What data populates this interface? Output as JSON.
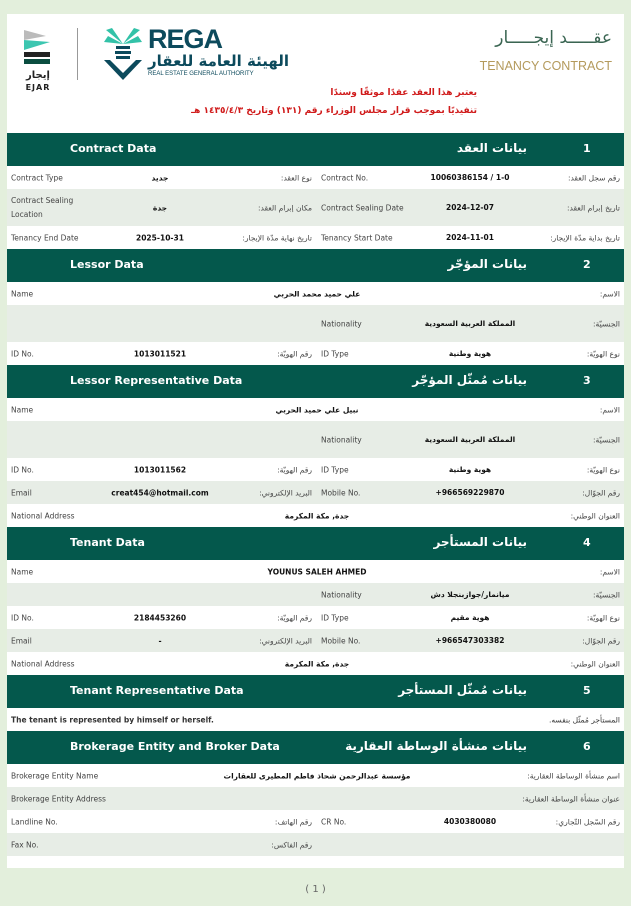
{
  "header": {
    "ejar_logo_ar": "إيجار",
    "ejar_logo_en": "EJAR",
    "rega_logo_en": "REGA",
    "rega_logo_ar": "الهيئة العامة للعقار",
    "rega_logo_sub": "REAL ESTATE GENERAL AUTHORITY",
    "title_ar": "عقـــــد إيجـــــار",
    "title_en": "TENANCY CONTRACT",
    "note_line1": "يعتبر هذا العقد عقدًا موثقًا وسندًا",
    "note_line2": "تنفيذيًا بموجب قرار مجلس الوزراء رقم (١٣١) وتاريخ ١٤٣٥/٤/٣ هـ",
    "note_color": "#d01a1a"
  },
  "colors": {
    "header_bar": "#04584c",
    "row_alt": "#e7ede6",
    "background": "#e3efdc"
  },
  "sections": [
    {
      "num": "1",
      "title_en": "Contract Data",
      "title_ar": "بيانات العقد",
      "rows": [
        {
          "en1": "Contract Type",
          "v1": "جديد",
          "ar1": "نوع العقد:",
          "en2": "Contract No.",
          "v2": "10060386154 / 1-0",
          "ar2": "رقم سجل العقد:"
        },
        {
          "tall": true,
          "en1": "Contract Sealing Location",
          "v1": "جدة",
          "ar1": "مكان إبرام العقد:",
          "en2": "Contract Sealing Date",
          "v2": "2024-12-07",
          "ar2": "تاريخ إبرام العقد:"
        },
        {
          "en1": "Tenancy End Date",
          "v1": "2025-10-31",
          "ar1": "تاريخ نهاية مدّة الإيجار:",
          "en2": "Tenancy Start Date",
          "v2": "2024-11-01",
          "ar2": "تاريخ بداية مدّة الإيجار:"
        }
      ]
    },
    {
      "num": "2",
      "title_en": "Lessor Data",
      "title_ar": "بيانات المؤجّر",
      "rows": [
        {
          "en1": "Name",
          "vw": "علي حميد محمد الحربي",
          "ar2": "الاسم:"
        },
        {
          "tall": true,
          "en2": "Nationality",
          "v2": "المملكة العربية السعودية",
          "ar2": "الجنسيّة:"
        },
        {
          "en1": "ID No.",
          "v1": "1013011521",
          "ar1": "رقم الهويّة:",
          "en2": "ID Type",
          "v2": "هوية وطنية",
          "ar2": "نوع الهويّة:"
        }
      ]
    },
    {
      "num": "3",
      "title_en": "Lessor Representative Data",
      "title_ar": "بيانات مُمثّل المؤجّر",
      "rows": [
        {
          "en1": "Name",
          "vw": "نبيل علي حميد الحربي",
          "ar2": "الاسم:"
        },
        {
          "tall": true,
          "en2": "Nationality",
          "v2": "المملكة العربية السعودية",
          "ar2": "الجنسيّة:"
        },
        {
          "en1": "ID No.",
          "v1": "1013011562",
          "ar1": "رقم الهويّة:",
          "en2": "ID Type",
          "v2": "هوية وطنية",
          "ar2": "نوع الهويّة:"
        },
        {
          "en1": "Email",
          "v1": "creat454@hotmail.com",
          "ar1": "البريد الإلكتروني:",
          "en2": "Mobile No.",
          "v2": "+966569229870",
          "ar2": "رقم الجوّال:"
        },
        {
          "en1": "National Address",
          "vw": "جدة, مكة المكرمة",
          "ar2": "العنوان الوطني:"
        }
      ]
    },
    {
      "num": "4",
      "title_en": "Tenant Data",
      "title_ar": "بيانات المستأجر",
      "rows": [
        {
          "en1": "Name",
          "vw": "YOUNUS SALEH AHMED",
          "ar2": "الاسم:"
        },
        {
          "en2": "Nationality",
          "v2": "ميانمار/جوازبنجلا دش",
          "ar2": "الجنسيّة:"
        },
        {
          "en1": "ID No.",
          "v1": "2184453260",
          "ar1": "رقم الهويّة:",
          "en2": "ID Type",
          "v2": "هوية مقيم",
          "ar2": "نوع الهويّة:"
        },
        {
          "en1": "Email",
          "v1": "-",
          "ar1": "البريد الإلكتروني:",
          "en2": "Mobile No.",
          "v2": "+966547303382",
          "ar2": "رقم الجوّال:"
        },
        {
          "en1": "National Address",
          "vw": "جدة, مكة المكرمة",
          "ar2": "العنوان الوطني:"
        }
      ]
    },
    {
      "num": "5",
      "title_en": "Tenant Representative Data",
      "title_ar": "بيانات مُمثّل المستأجر",
      "rows": [
        {
          "fen": "The tenant is represented by himself or herself.",
          "far": "المستأجر مُمثّل بنفسه."
        }
      ]
    },
    {
      "num": "6",
      "title_en": "Brokerage Entity and Broker Data",
      "title_ar": "بيانات منشأة الوساطة العقارية",
      "rows": [
        {
          "en1": "Brokerage Entity Name",
          "vw": "مؤسسة عبدالرحمن شحاذ فاطم المطيرى للعقارات",
          "ar2": "اسم منشأة الوساطة العقارية:"
        },
        {
          "en1": "Brokerage Entity Address",
          "ar2": "عنوان منشأة الوساطة العقارية:"
        },
        {
          "en1": "Landline No.",
          "ar1": "رقم الهاتف:",
          "en2": "CR No.",
          "v2": "4030380080",
          "ar2": "رقم السّجل التّجاري:"
        },
        {
          "en1": "Fax No.",
          "ar1": "رقم الفاكس:"
        }
      ]
    }
  ],
  "footer": {
    "page": "( 1 )"
  }
}
